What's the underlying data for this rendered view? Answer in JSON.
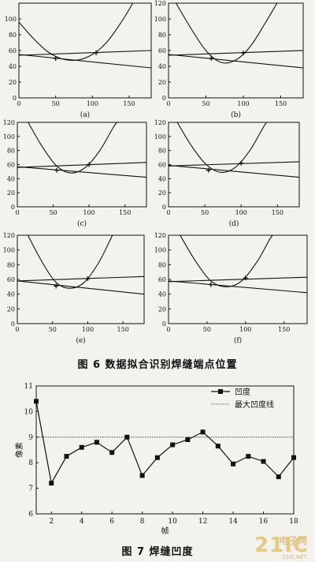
{
  "figure6": {
    "caption": "图 6  数据拟合识别焊缝端点位置",
    "chart_data": [
      {
        "type": "line",
        "panel_label": "(a)",
        "xlim": [
          0,
          180
        ],
        "ylim": [
          0,
          120
        ],
        "xticks": [
          0,
          50,
          100,
          150
        ],
        "yticks": [
          0,
          20,
          40,
          60,
          80,
          100
        ],
        "series": [
          {
            "kind": "parabola",
            "points": [
              [
                0,
                96
              ],
              [
                20,
                75
              ],
              [
                40,
                58
              ],
              [
                60,
                49
              ],
              [
                80,
                48
              ],
              [
                100,
                55
              ],
              [
                120,
                71
              ],
              [
                140,
                97
              ],
              [
                155,
                120
              ]
            ]
          },
          {
            "kind": "line_flat",
            "points": [
              [
                0,
                54
              ],
              [
                180,
                60
              ]
            ]
          },
          {
            "kind": "line_descending",
            "points": [
              [
                0,
                55
              ],
              [
                180,
                38
              ]
            ]
          }
        ],
        "endpoints": [
          [
            50,
            50
          ],
          [
            105,
            57
          ]
        ]
      },
      {
        "type": "line",
        "panel_label": "(b)",
        "xlim": [
          0,
          180
        ],
        "ylim": [
          0,
          120
        ],
        "xticks": [
          0,
          50,
          100,
          150
        ],
        "yticks": [
          0,
          20,
          40,
          60,
          80,
          100,
          120
        ],
        "series": [
          {
            "kind": "parabola",
            "points": [
              [
                10,
                120
              ],
              [
                30,
                88
              ],
              [
                50,
                60
              ],
              [
                70,
                45
              ],
              [
                90,
                48
              ],
              [
                110,
                66
              ],
              [
                130,
                96
              ],
              [
                145,
                120
              ]
            ]
          },
          {
            "kind": "line_flat",
            "points": [
              [
                0,
                54
              ],
              [
                180,
                60
              ]
            ]
          },
          {
            "kind": "line_descending",
            "points": [
              [
                0,
                55
              ],
              [
                180,
                38
              ]
            ]
          }
        ],
        "endpoints": [
          [
            57,
            50
          ],
          [
            100,
            57
          ]
        ]
      },
      {
        "type": "line",
        "panel_label": "(c)",
        "xlim": [
          0,
          180
        ],
        "ylim": [
          0,
          120
        ],
        "xticks": [
          0,
          50,
          100,
          150
        ],
        "yticks": [
          0,
          20,
          40,
          60,
          80,
          100,
          120
        ],
        "series": [
          {
            "kind": "parabola",
            "points": [
              [
                15,
                120
              ],
              [
                35,
                85
              ],
              [
                55,
                58
              ],
              [
                75,
                48
              ],
              [
                95,
                56
              ],
              [
                115,
                80
              ],
              [
                135,
                115
              ],
              [
                140,
                120
              ]
            ]
          },
          {
            "kind": "line_flat",
            "points": [
              [
                0,
                56
              ],
              [
                180,
                63
              ]
            ]
          },
          {
            "kind": "line_descending",
            "points": [
              [
                0,
                57
              ],
              [
                180,
                42
              ]
            ]
          }
        ],
        "endpoints": [
          [
            55,
            52
          ],
          [
            100,
            60
          ]
        ]
      },
      {
        "type": "line",
        "panel_label": "(d)",
        "xlim": [
          0,
          180
        ],
        "ylim": [
          0,
          120
        ],
        "xticks": [
          0,
          50,
          100,
          150
        ],
        "yticks": [
          0,
          20,
          40,
          60,
          80,
          100,
          120
        ],
        "series": [
          {
            "kind": "parabola",
            "points": [
              [
                12,
                120
              ],
              [
                32,
                86
              ],
              [
                52,
                60
              ],
              [
                72,
                49
              ],
              [
                92,
                56
              ],
              [
                112,
                80
              ],
              [
                130,
                112
              ],
              [
                135,
                120
              ]
            ]
          },
          {
            "kind": "line_flat",
            "points": [
              [
                0,
                58
              ],
              [
                180,
                64
              ]
            ]
          },
          {
            "kind": "line_descending",
            "points": [
              [
                0,
                59
              ],
              [
                180,
                42
              ]
            ]
          }
        ],
        "endpoints": [
          [
            55,
            52
          ],
          [
            100,
            62
          ]
        ]
      },
      {
        "type": "line",
        "panel_label": "(e)",
        "xlim": [
          0,
          180
        ],
        "ylim": [
          0,
          120
        ],
        "xticks": [
          0,
          50,
          100,
          150
        ],
        "yticks": [
          0,
          20,
          40,
          60,
          80,
          100,
          120
        ],
        "series": [
          {
            "kind": "parabola",
            "points": [
              [
                15,
                120
              ],
              [
                35,
                84
              ],
              [
                55,
                56
              ],
              [
                75,
                48
              ],
              [
                95,
                56
              ],
              [
                115,
                82
              ],
              [
                130,
                110
              ],
              [
                135,
                120
              ]
            ]
          },
          {
            "kind": "line_flat",
            "points": [
              [
                0,
                58
              ],
              [
                180,
                64
              ]
            ]
          },
          {
            "kind": "line_descending",
            "points": [
              [
                0,
                58
              ],
              [
                180,
                40
              ]
            ]
          }
        ],
        "endpoints": [
          [
            55,
            51
          ],
          [
            100,
            61
          ]
        ]
      },
      {
        "type": "line",
        "panel_label": "(f)",
        "xlim": [
          0,
          180
        ],
        "ylim": [
          0,
          120
        ],
        "xticks": [
          0,
          50,
          100,
          150
        ],
        "yticks": [
          0,
          20,
          40,
          60,
          80,
          100,
          120
        ],
        "series": [
          {
            "kind": "parabola",
            "points": [
              [
                15,
                120
              ],
              [
                35,
                85
              ],
              [
                55,
                58
              ],
              [
                75,
                50
              ],
              [
                95,
                58
              ],
              [
                115,
                84
              ],
              [
                130,
                112
              ],
              [
                135,
                120
              ]
            ]
          },
          {
            "kind": "line_flat",
            "points": [
              [
                0,
                57
              ],
              [
                180,
                63
              ]
            ]
          },
          {
            "kind": "line_descending",
            "points": [
              [
                0,
                58
              ],
              [
                180,
                42
              ]
            ]
          }
        ],
        "endpoints": [
          [
            55,
            53
          ],
          [
            100,
            62
          ]
        ]
      }
    ]
  },
  "figure7": {
    "caption": "图 7   焊缝凹度",
    "chart_data": {
      "type": "line",
      "x": [
        1,
        2,
        3,
        4,
        5,
        6,
        7,
        8,
        9,
        10,
        11,
        12,
        13,
        14,
        15,
        16,
        17,
        18
      ],
      "series": [
        {
          "name": "凹度",
          "values": [
            10.4,
            7.2,
            8.25,
            8.6,
            8.8,
            8.4,
            9.0,
            7.5,
            8.2,
            8.7,
            8.9,
            9.2,
            8.65,
            7.95,
            8.25,
            8.05,
            7.45,
            8.2
          ]
        },
        {
          "name": "最大凹度线",
          "values": [
            9.0,
            9.0,
            9.0,
            9.0,
            9.0,
            9.0,
            9.0,
            9.0,
            9.0,
            9.0,
            9.0,
            9.0,
            9.0,
            9.0,
            9.0,
            9.0,
            9.0,
            9.0
          ]
        }
      ],
      "xlabel": "帧",
      "ylabel": "像素",
      "xlim": [
        1,
        18
      ],
      "ylim": [
        6,
        11
      ],
      "xticks": [
        2,
        4,
        6,
        8,
        10,
        12,
        14,
        16,
        18
      ],
      "yticks": [
        6,
        7,
        8,
        9,
        10,
        11
      ],
      "legend_position": "top-right"
    }
  },
  "watermark": {
    "main": "21IC",
    "sub": "电子网",
    "url": "21IC.NET"
  }
}
